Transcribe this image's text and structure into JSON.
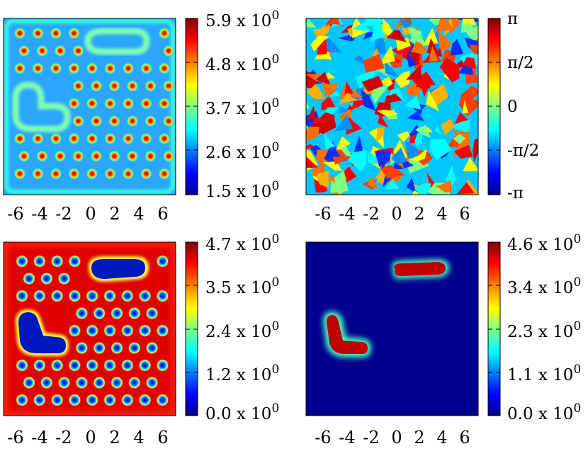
{
  "figure": {
    "panels": [
      {
        "id": "density-1",
        "map": "density-lattice",
        "dark_bg": false,
        "x_ticks": [
          "-6",
          "-4",
          "-2",
          "0",
          "2",
          "4",
          "6"
        ],
        "colorbar": {
          "ticks": [
            "5.9 x 10",
            "4.8 x 10",
            "3.7 x 10",
            "2.6 x 10",
            "1.5 x 10"
          ],
          "exponent": "0"
        }
      },
      {
        "id": "phase-1",
        "map": "phase-random",
        "dark_bg": false,
        "x_ticks": [
          "-6",
          "-4",
          "-2",
          "0",
          "2",
          "4",
          "6"
        ],
        "colorbar": {
          "ticks": [
            "π",
            "π/2",
            "0",
            "-π/2",
            "-π"
          ],
          "exponent": ""
        }
      },
      {
        "id": "density-2",
        "map": "density-holes",
        "dark_bg": false,
        "x_ticks": [
          "-6",
          "-4",
          "-2",
          "0",
          "2",
          "4",
          "6"
        ],
        "colorbar": {
          "ticks": [
            "4.7 x 10",
            "3.5 x 10",
            "2.4 x 10",
            "1.2 x 10",
            "0.0 x 10"
          ],
          "exponent": "0"
        }
      },
      {
        "id": "density-3",
        "map": "density-blobs",
        "dark_bg": true,
        "x_ticks": [
          "-6",
          "-4",
          "-2",
          "0",
          "2",
          "4",
          "6"
        ],
        "colorbar": {
          "ticks": [
            "4.6 x 10",
            "3.4 x 10",
            "2.3 x 10",
            "1.1 x 10",
            "0.0 x 10"
          ],
          "exponent": "0"
        }
      }
    ],
    "colors": {
      "jet": [
        "#00008f",
        "#0000ff",
        "#0080ff",
        "#00ffff",
        "#80ff80",
        "#ffff00",
        "#ff8000",
        "#ff0000",
        "#800000"
      ],
      "panel_bg_dark": "#00008f",
      "axis": "#000000"
    }
  },
  "chart_data": [
    {
      "type": "heatmap",
      "x_ticks": [
        -6,
        -4,
        -2,
        0,
        2,
        4,
        6
      ],
      "colorbar_ticks": [
        5.9,
        4.8,
        3.7,
        2.6,
        1.5
      ],
      "colorbar_range": [
        1.5,
        5.9
      ],
      "colormap": "jet"
    },
    {
      "type": "heatmap",
      "x_ticks": [
        -6,
        -4,
        -2,
        0,
        2,
        4,
        6
      ],
      "colorbar_ticks": [
        "π",
        "π/2",
        "0",
        "-π/2",
        "-π"
      ],
      "colorbar_range": [
        -3.14159,
        3.14159
      ],
      "colormap": "jet"
    },
    {
      "type": "heatmap",
      "x_ticks": [
        -6,
        -4,
        -2,
        0,
        2,
        4,
        6
      ],
      "colorbar_ticks": [
        4.7,
        3.5,
        2.4,
        1.2,
        0.0
      ],
      "colorbar_range": [
        0.0,
        4.7
      ],
      "colormap": "jet"
    },
    {
      "type": "heatmap",
      "x_ticks": [
        -6,
        -4,
        -2,
        0,
        2,
        4,
        6
      ],
      "colorbar_ticks": [
        4.6,
        3.4,
        2.3,
        1.1,
        0.0
      ],
      "colorbar_range": [
        0.0,
        4.6
      ],
      "colormap": "jet"
    }
  ]
}
